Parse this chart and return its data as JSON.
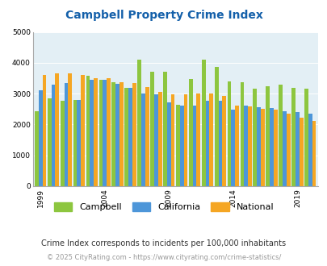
{
  "title": "Campbell Property Crime Index",
  "subtitle": "Crime Index corresponds to incidents per 100,000 inhabitants",
  "footer": "© 2025 CityRating.com - https://www.cityrating.com/crime-statistics/",
  "years": [
    1999,
    2000,
    2001,
    2002,
    2003,
    2004,
    2005,
    2006,
    2007,
    2008,
    2009,
    2010,
    2011,
    2012,
    2013,
    2014,
    2015,
    2016,
    2017,
    2018,
    2019,
    2020
  ],
  "campbell": [
    2440,
    2840,
    2780,
    2800,
    3590,
    3450,
    3380,
    3190,
    4100,
    3700,
    3720,
    2640,
    3480,
    4110,
    3870,
    3400,
    3360,
    3150,
    3230,
    3290,
    3180,
    3160
  ],
  "california": [
    3110,
    3280,
    3340,
    2790,
    3450,
    3440,
    3320,
    3200,
    3010,
    2970,
    2720,
    2620,
    2600,
    2760,
    2780,
    2480,
    2620,
    2560,
    2530,
    2430,
    2400,
    2350
  ],
  "national": [
    3600,
    3670,
    3650,
    3600,
    3500,
    3500,
    3360,
    3340,
    3210,
    3060,
    2980,
    2970,
    3010,
    3000,
    2920,
    2620,
    2590,
    2500,
    2470,
    2360,
    2210,
    2120
  ],
  "bar_colors": {
    "campbell": "#8dc63f",
    "california": "#4d96d9",
    "national": "#f5a623"
  },
  "bg_color": "#e3eff5",
  "ylim": [
    0,
    5000
  ],
  "yticks": [
    0,
    1000,
    2000,
    3000,
    4000,
    5000
  ],
  "xtick_years": [
    1999,
    2004,
    2009,
    2014,
    2019
  ],
  "title_color": "#1460aa",
  "title_fontsize": 10,
  "subtitle_color": "#333333",
  "subtitle_fontsize": 7.0,
  "footer_color": "#999999",
  "footer_fontsize": 6.0,
  "legend_labels": [
    "Campbell",
    "California",
    "National"
  ]
}
